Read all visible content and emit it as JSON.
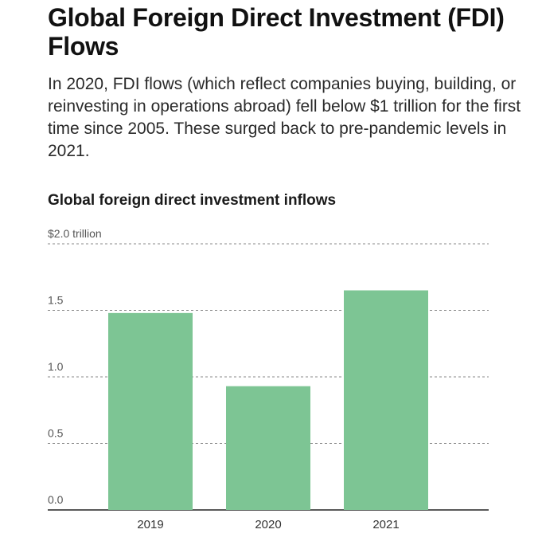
{
  "headline": "Global Foreign Direct Investment (FDI) Flows",
  "dek": "In 2020, FDI flows (which reflect companies buying, building, or reinvesting in operations abroad) fell below $1 trillion for the first time since 2005. These surged back to pre-pandemic levels in 2021.",
  "colors": {
    "bar": "#7dc594",
    "grid": "#8a8a8a",
    "axis": "#222222"
  },
  "chart_data": {
    "type": "bar",
    "title": "Global foreign direct investment inflows",
    "categories": [
      "2019",
      "2020",
      "2021"
    ],
    "values": [
      1.48,
      0.93,
      1.65
    ],
    "ylim": [
      0,
      2.0
    ],
    "yticks": [
      0,
      0.5,
      1.0,
      1.5,
      2.0
    ],
    "ytick_labels": [
      "0.0",
      "0.5",
      "1.0",
      "1.5",
      "$2.0 trillion"
    ],
    "grid": true,
    "xlabel": "",
    "ylabel": ""
  }
}
